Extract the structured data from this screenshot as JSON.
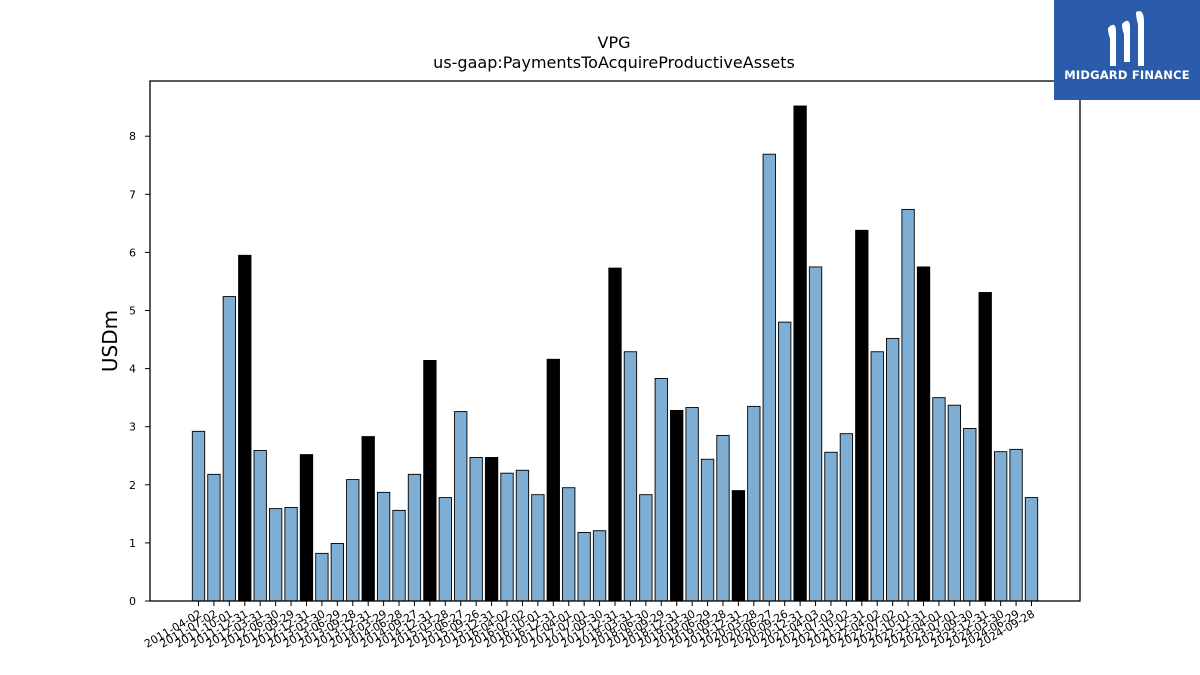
{
  "chart_data": {
    "type": "bar",
    "title": "VPG",
    "subtitle": "us-gaap:PaymentsToAcquireProductiveAssets",
    "xlabel": "",
    "ylabel": "USDm",
    "ylim": [
      0,
      8.95
    ],
    "yticks": [
      0,
      1,
      2,
      3,
      4,
      5,
      6,
      7,
      8
    ],
    "grid": false,
    "colors": {
      "bar": "#7eaed4",
      "highlight": "#000000",
      "edge": "#000000"
    },
    "categories": [
      "2011-04-02",
      "2011-07-02",
      "2011-10-01",
      "2011-12-31",
      "2012-03-31",
      "2012-06-30",
      "2012-09-29",
      "2012-12-31",
      "2013-03-30",
      "2013-06-29",
      "2013-09-28",
      "2013-12-31",
      "2014-03-29",
      "2014-06-28",
      "2014-09-27",
      "2014-12-31",
      "2015-03-28",
      "2015-06-27",
      "2015-09-26",
      "2015-12-31",
      "2016-04-02",
      "2016-07-02",
      "2016-10-01",
      "2016-12-31",
      "2017-04-01",
      "2017-07-01",
      "2017-09-30",
      "2017-12-31",
      "2018-03-31",
      "2018-06-30",
      "2018-09-29",
      "2018-12-31",
      "2019-03-30",
      "2019-06-29",
      "2019-09-28",
      "2019-12-31",
      "2020-03-28",
      "2020-06-27",
      "2020-09-26",
      "2020-12-31",
      "2021-04-03",
      "2021-07-03",
      "2021-10-02",
      "2021-12-31",
      "2022-04-02",
      "2022-07-02",
      "2022-10-01",
      "2022-12-31",
      "2023-04-01",
      "2023-07-01",
      "2023-09-30",
      "2023-12-31",
      "2024-03-30",
      "2024-06-29",
      "2024-09-28"
    ],
    "values": [
      2.92,
      2.18,
      5.24,
      5.95,
      2.59,
      1.59,
      1.61,
      2.52,
      0.82,
      0.99,
      2.09,
      2.83,
      1.87,
      1.56,
      2.18,
      4.14,
      1.78,
      3.26,
      2.47,
      2.47,
      2.2,
      2.25,
      1.83,
      4.16,
      1.95,
      1.18,
      1.21,
      5.73,
      4.29,
      1.83,
      3.83,
      3.28,
      3.33,
      2.44,
      2.85,
      1.9,
      3.35,
      7.69,
      4.8,
      8.52,
      5.75,
      2.56,
      2.88,
      6.38,
      4.29,
      4.52,
      6.74,
      5.75,
      3.5,
      3.37,
      2.97,
      5.31,
      2.57,
      2.61,
      1.78
    ],
    "highlight": [
      false,
      false,
      false,
      true,
      false,
      false,
      false,
      true,
      false,
      false,
      false,
      true,
      false,
      false,
      false,
      true,
      false,
      false,
      false,
      true,
      false,
      false,
      false,
      true,
      false,
      false,
      false,
      true,
      false,
      false,
      false,
      true,
      false,
      false,
      false,
      true,
      false,
      false,
      false,
      true,
      false,
      false,
      false,
      true,
      false,
      false,
      false,
      true,
      false,
      false,
      false,
      true,
      false,
      false,
      false
    ]
  },
  "watermark": {
    "brand": "MIDGARD FINANCE",
    "color": "#2b5cab",
    "icon": "midgard-logo-icon"
  }
}
